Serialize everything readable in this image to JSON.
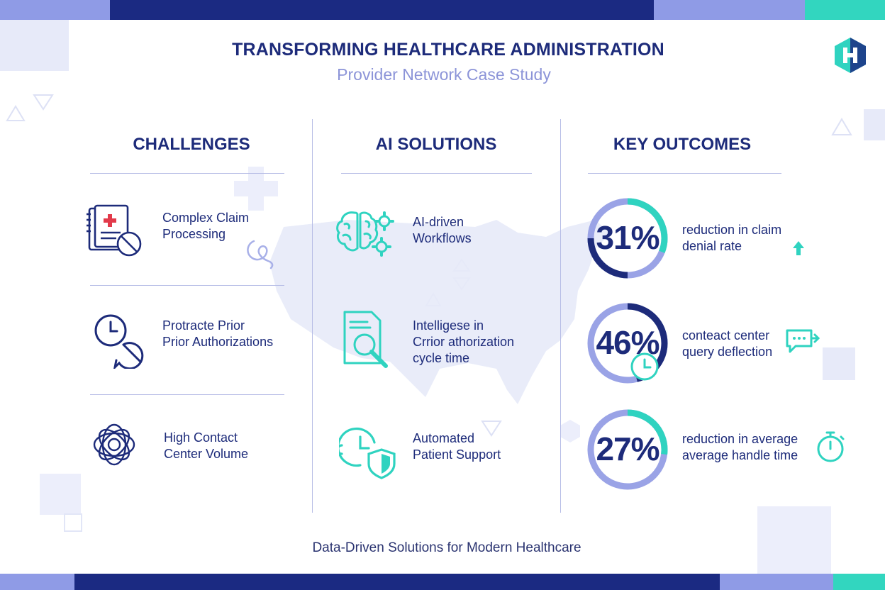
{
  "header": {
    "title": "TRANSFORMING HEALTHCARE ADMINISTRATION",
    "subtitle": "Provider Network Case Study",
    "logo_letter": "H"
  },
  "colors": {
    "navy": "#1d2b7a",
    "periwinkle": "#8c94d8",
    "teal": "#2fd3c0",
    "light_bar": "#8f9be6"
  },
  "columns": {
    "challenges": {
      "heading": "CHALLENGES",
      "items": [
        {
          "icon": "claim-documents-icon",
          "text": "Complex Claim\nProcessing"
        },
        {
          "icon": "clock-blocked-icon",
          "text": "Protracte Prior\nPrior Authorizations"
        },
        {
          "icon": "tangled-network-icon",
          "text": "High Contact\nCenter Volume"
        }
      ]
    },
    "solutions": {
      "heading": "AI SOLUTIONS",
      "items": [
        {
          "icon": "brain-gears-icon",
          "text": "AI-driven\nWorkflows"
        },
        {
          "icon": "document-search-icon",
          "text": "Intelligese in\nCrrior athorization\ncycle time"
        },
        {
          "icon": "clock-shield-icon",
          "text": "Automated\nPatient Support"
        }
      ]
    },
    "outcomes": {
      "heading": "KEY OUTCOMES",
      "items": [
        {
          "value": "31%",
          "progress": 0.31,
          "icon": "arrow-up-icon",
          "text": "reduction in claim\ndenial rate"
        },
        {
          "value": "46%",
          "progress": 0.46,
          "icon": "chat-bubble-icon",
          "text": "conteact center\nquery deflection"
        },
        {
          "value": "27%",
          "progress": 0.27,
          "icon": "stopwatch-icon",
          "text": "reduction in average\naverage handle time"
        }
      ]
    }
  },
  "footer": {
    "tagline": "Data-Driven Solutions for Modern Healthcare"
  }
}
